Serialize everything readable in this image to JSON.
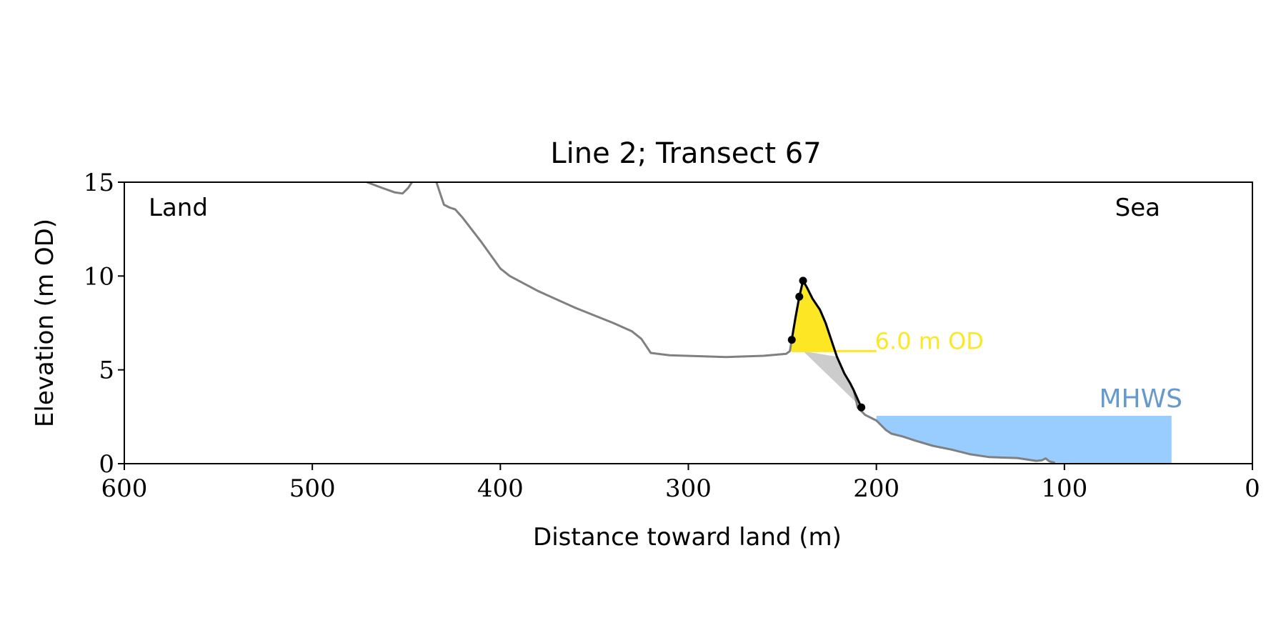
{
  "chart_data": {
    "type": "area",
    "title": "Line 2; Transect 67",
    "xlabel": "Distance toward land (m)",
    "ylabel": "Elevation (m OD)",
    "xlim": [
      600,
      0
    ],
    "ylim": [
      0,
      15
    ],
    "x_ticks": [
      600,
      500,
      400,
      300,
      200,
      100,
      0
    ],
    "y_ticks": [
      0,
      5,
      10,
      15
    ],
    "grid": false,
    "corner_labels": {
      "left": "Land",
      "right": "Sea"
    },
    "colors": {
      "profile": "#808080",
      "dune": "#fde725",
      "dune_outline": "#000000",
      "below_threshold": "#cccccc",
      "mhws_fill": "#99ccff",
      "mhws_label": "#6699cc",
      "threshold_label": "#fde725"
    },
    "threshold": {
      "label": "6.0 m OD",
      "value": 6.0,
      "x_range": [
        245,
        200
      ]
    },
    "mhws": {
      "label": "MHWS",
      "value": 2.55,
      "x_range": [
        200,
        43
      ]
    },
    "series": [
      {
        "role": "ground-profile",
        "points": [
          [
            471,
            15.0
          ],
          [
            463,
            14.7
          ],
          [
            456,
            14.45
          ],
          [
            452,
            14.4
          ],
          [
            449,
            14.7
          ],
          [
            447,
            15.0
          ]
        ]
      },
      {
        "role": "ground-profile",
        "points": [
          [
            434,
            15.0
          ],
          [
            432,
            14.4
          ],
          [
            430,
            13.8
          ],
          [
            427,
            13.65
          ],
          [
            424,
            13.55
          ],
          [
            420,
            13.1
          ],
          [
            410,
            11.8
          ],
          [
            400,
            10.4
          ],
          [
            395,
            10.0
          ],
          [
            380,
            9.2
          ],
          [
            360,
            8.3
          ],
          [
            340,
            7.5
          ],
          [
            330,
            7.05
          ],
          [
            325,
            6.65
          ],
          [
            320,
            5.9
          ],
          [
            310,
            5.78
          ],
          [
            280,
            5.68
          ],
          [
            260,
            5.75
          ],
          [
            248,
            5.85
          ],
          [
            246,
            6.0
          ],
          [
            245,
            6.6
          ],
          [
            243,
            7.8
          ],
          [
            241,
            8.9
          ],
          [
            239,
            9.75
          ],
          [
            237,
            9.4
          ],
          [
            234,
            8.8
          ],
          [
            230,
            8.2
          ],
          [
            227,
            7.5
          ],
          [
            224,
            6.6
          ],
          [
            221,
            5.7
          ],
          [
            217,
            4.8
          ],
          [
            214,
            4.3
          ],
          [
            212,
            3.9
          ],
          [
            210,
            3.0
          ],
          [
            206,
            2.6
          ],
          [
            200,
            2.3
          ],
          [
            195,
            1.8
          ],
          [
            192,
            1.6
          ],
          [
            186,
            1.45
          ],
          [
            180,
            1.25
          ],
          [
            170,
            0.95
          ],
          [
            160,
            0.75
          ],
          [
            150,
            0.5
          ],
          [
            140,
            0.35
          ],
          [
            125,
            0.3
          ],
          [
            115,
            0.15
          ],
          [
            112,
            0.18
          ],
          [
            110,
            0.28
          ],
          [
            108,
            0.12
          ],
          [
            105,
            0.05
          ]
        ]
      }
    ],
    "dune_points": [
      [
        245,
        6.6
      ],
      [
        243,
        7.8
      ],
      [
        241,
        8.9
      ],
      [
        239,
        9.75
      ],
      [
        237,
        9.4
      ],
      [
        234,
        8.8
      ],
      [
        230,
        8.2
      ],
      [
        227,
        7.5
      ],
      [
        224,
        6.6
      ],
      [
        221,
        5.7
      ],
      [
        217,
        4.8
      ],
      [
        214,
        4.3
      ],
      [
        212,
        3.9
      ],
      [
        208,
        3.0
      ]
    ],
    "marker_points": [
      [
        245,
        6.6
      ],
      [
        241,
        8.9
      ],
      [
        239,
        9.75
      ],
      [
        208,
        3.0
      ]
    ]
  }
}
